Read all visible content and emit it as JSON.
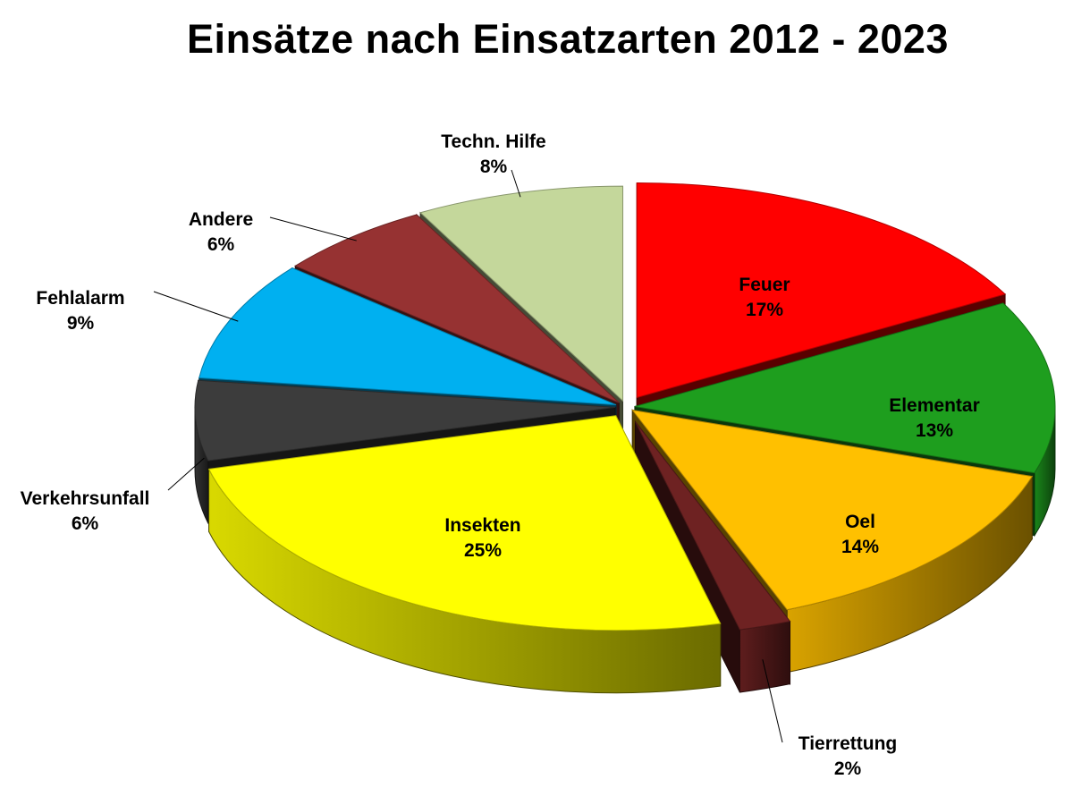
{
  "chart_data": {
    "type": "pie",
    "title": "Einsätze nach Einsatzarten 2012 - 2023",
    "label_format": "{name}\n{percent}%",
    "slices": [
      {
        "name": "Feuer",
        "percent": 17,
        "color": "#ff0000"
      },
      {
        "name": "Elementar",
        "percent": 13,
        "color": "#1e9e1e"
      },
      {
        "name": "Oel",
        "percent": 14,
        "color": "#ffc000"
      },
      {
        "name": "Tierrettung",
        "percent": 2,
        "color": "#6e2222"
      },
      {
        "name": "Insekten",
        "percent": 25,
        "color": "#ffff00"
      },
      {
        "name": "Verkehrsunfall",
        "percent": 6,
        "color": "#3c3c3c"
      },
      {
        "name": "Fehlalarm",
        "percent": 9,
        "color": "#00b0f0"
      },
      {
        "name": "Andere",
        "percent": 6,
        "color": "#963232"
      },
      {
        "name": "Techn. Hilfe",
        "percent": 8,
        "color": "#c4d79b"
      }
    ]
  }
}
